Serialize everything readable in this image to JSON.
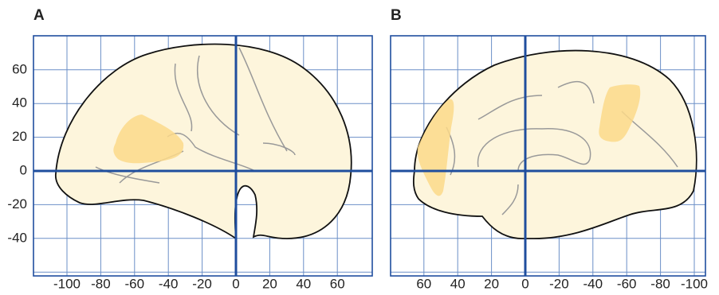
{
  "panels": [
    {
      "label": "A",
      "x_ticks": [
        -100,
        -80,
        -60,
        -40,
        -20,
        0,
        20,
        40,
        60
      ],
      "y_ticks": [
        60,
        40,
        20,
        0,
        -20,
        -40
      ]
    },
    {
      "label": "B",
      "x_ticks": [
        60,
        40,
        20,
        0,
        -20,
        -40,
        -60,
        -80,
        -100
      ]
    }
  ]
}
